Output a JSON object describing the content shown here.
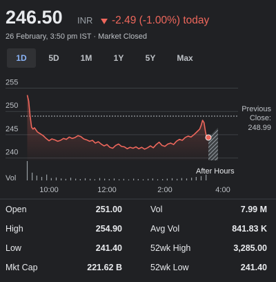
{
  "header": {
    "price": "246.50",
    "currency": "INR",
    "change": "-2.49 (-1.00%) today",
    "subtitle": "26 February, 3:50 pm IST · Market Closed"
  },
  "tabs": [
    "1D",
    "5D",
    "1M",
    "1Y",
    "5Y",
    "Max"
  ],
  "selected_tab": 0,
  "chart_data": {
    "type": "line",
    "color": "#ee675c",
    "x": [
      9.25,
      9.3,
      9.35,
      9.4,
      9.45,
      9.5,
      9.6,
      9.7,
      9.8,
      9.9,
      10,
      10.1,
      10.2,
      10.3,
      10.4,
      10.5,
      10.6,
      10.7,
      10.8,
      10.9,
      11,
      11.1,
      11.2,
      11.3,
      11.4,
      11.5,
      11.6,
      11.7,
      11.8,
      11.9,
      12,
      12.1,
      12.2,
      12.3,
      12.4,
      12.5,
      12.6,
      12.7,
      12.8,
      12.9,
      13,
      13.1,
      13.2,
      13.3,
      13.4,
      13.5,
      13.6,
      13.7,
      13.8,
      13.9,
      14,
      14.1,
      14.2,
      14.3,
      14.4,
      14.5,
      14.6,
      14.7,
      14.8,
      14.9,
      15,
      15.1,
      15.2,
      15.25,
      15.3,
      15.35,
      15.4,
      15.45,
      15.5
    ],
    "values": [
      253.5,
      252.2,
      249,
      246.6,
      246.2,
      246.5,
      245.6,
      245.2,
      244.8,
      244.2,
      243.7,
      244.1,
      243.9,
      243.6,
      243.8,
      244.2,
      244,
      244.5,
      244.2,
      244.4,
      244.8,
      244.6,
      244.1,
      243.9,
      243.6,
      243.8,
      243.2,
      243.5,
      243,
      242.6,
      242.9,
      242.3,
      242.1,
      242.7,
      243,
      242.5,
      242.4,
      242,
      242.3,
      242.1,
      242.4,
      242,
      242.3,
      241.9,
      242.2,
      242.6,
      242.2,
      242.9,
      243.4,
      242.7,
      242.5,
      243,
      243.2,
      242.9,
      243.6,
      244,
      243.8,
      244.4,
      244.7,
      244.5,
      245,
      245.6,
      246.2,
      247,
      248.1,
      247.6,
      245.6,
      244.2,
      244.4
    ],
    "xlim": [
      9,
      16.5
    ],
    "xticks": [
      {
        "value": 10,
        "label": "10:00"
      },
      {
        "value": 12,
        "label": "12:00"
      },
      {
        "value": 14,
        "label": "2:00"
      },
      {
        "value": 16,
        "label": "4:00"
      }
    ],
    "ylim": [
      239.5,
      257
    ],
    "yticks": [
      240,
      245,
      250,
      255
    ],
    "grid": true,
    "previous_close": {
      "label": "Previous Close:",
      "value": 248.99
    },
    "after_hours": {
      "label": "After Hours",
      "x": [
        15.5,
        15.83
      ],
      "values": [
        244.4,
        246.5
      ]
    },
    "volume": {
      "label": "Vol",
      "vlim": [
        0,
        100
      ],
      "x": [
        9.25,
        9.42,
        9.58,
        9.75,
        9.92,
        10.08,
        10.25,
        10.42,
        10.58,
        10.75,
        10.92,
        11.08,
        11.25,
        11.42,
        11.58,
        11.75,
        11.92,
        12.08,
        12.25,
        12.42,
        12.58,
        12.75,
        12.92,
        13.08,
        13.25,
        13.42,
        13.58,
        13.75,
        13.92,
        14.08,
        14.25,
        14.42,
        14.58,
        14.75,
        14.92,
        15.08,
        15.25,
        15.42
      ],
      "values": [
        100,
        40,
        25,
        18,
        30,
        12,
        15,
        10,
        8,
        14,
        9,
        7,
        11,
        8,
        6,
        12,
        9,
        7,
        10,
        6,
        8,
        5,
        9,
        7,
        6,
        8,
        10,
        6,
        7,
        9,
        11,
        8,
        12,
        10,
        14,
        18,
        22,
        30
      ]
    }
  },
  "stats": [
    [
      "Open",
      "251.00",
      "Vol",
      "7.99 M"
    ],
    [
      "High",
      "254.90",
      "Avg Vol",
      "841.83 K"
    ],
    [
      "Low",
      "241.40",
      "52wk High",
      "3,285.00"
    ],
    [
      "Mkt Cap",
      "221.62 B",
      "52wk Low",
      "241.40"
    ]
  ]
}
